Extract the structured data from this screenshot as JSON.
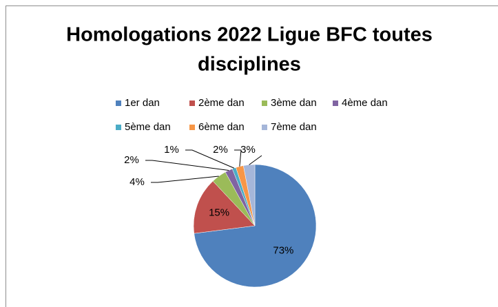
{
  "chart_data": {
    "type": "pie",
    "title": "Homologations 2022 Ligue BFC toutes disciplines",
    "categories": [
      "1er dan",
      "2ème dan",
      "3ème dan",
      "4ème dan",
      "5ème dan",
      "6ème dan",
      "7ème dan"
    ],
    "values": [
      73,
      15,
      4,
      2,
      1,
      2,
      3
    ],
    "value_labels": [
      "73%",
      "15%",
      "4%",
      "2%",
      "1%",
      "2%",
      "3%"
    ],
    "colors": [
      "#4f81bd",
      "#c0504d",
      "#9bbb59",
      "#8064a2",
      "#4bacc6",
      "#f79646",
      "#a5b6d9"
    ],
    "legend": "top"
  }
}
